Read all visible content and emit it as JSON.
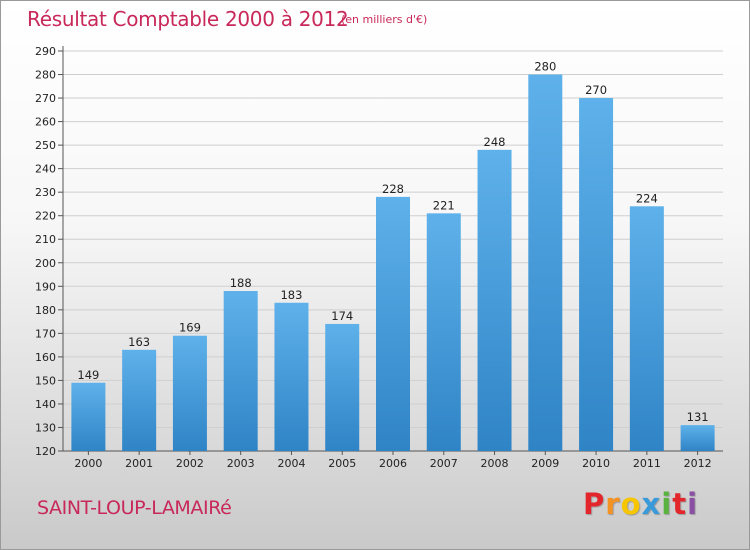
{
  "title": "Résultat Comptable 2000 à 2012",
  "unit_note": "(en milliers d'€)",
  "commune": "SAINT-LOUP-LAMAIRé",
  "logo": {
    "letters": [
      "P",
      "r",
      "o",
      "x",
      "i",
      "t",
      "i"
    ],
    "colors": [
      "#e2262b",
      "#f39323",
      "#f7c600",
      "#3a9ad9",
      "#5ab33e",
      "#e2262b",
      "#8a4fa3"
    ]
  },
  "colors": {
    "bar_top": "#5eb1ea",
    "bar_bottom": "#2f84c6",
    "grid": "#cfcfcf",
    "text": "#222222",
    "accent": "#c8285a"
  },
  "chart_data": {
    "type": "bar",
    "categories": [
      "2000",
      "2001",
      "2002",
      "2003",
      "2004",
      "2005",
      "2006",
      "2007",
      "2008",
      "2009",
      "2010",
      "2011",
      "2012"
    ],
    "values": [
      149,
      163,
      169,
      188,
      183,
      174,
      228,
      221,
      248,
      280,
      270,
      224,
      131
    ],
    "title": "Résultat Comptable 2000 à 2012",
    "ylim": [
      120,
      290
    ],
    "yticks": [
      120,
      130,
      140,
      150,
      160,
      170,
      180,
      190,
      200,
      210,
      220,
      230,
      240,
      250,
      260,
      270,
      280,
      290
    ],
    "grid": true,
    "data_labels": true
  }
}
